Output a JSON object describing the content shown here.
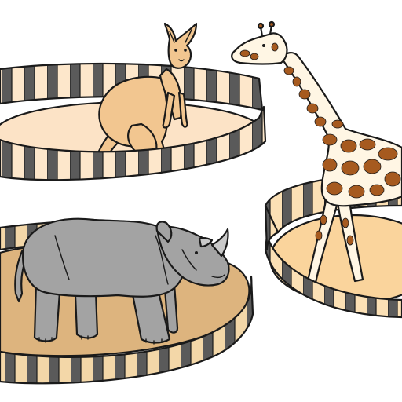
{
  "scene": {
    "background": "#ffffff",
    "outline_color": "#1a1a1a",
    "bar_color": "#5a5a5a",
    "pens": [
      {
        "name": "kangaroo-pen",
        "floor_color": "#fce3c6",
        "wall_color": "#fde7cb"
      },
      {
        "name": "rhino-pen",
        "floor_color": "#ddb47e",
        "wall_color": "#f3d7a8"
      },
      {
        "name": "giraffe-pen",
        "floor_color": "#fad49c",
        "wall_color": "#fbe0b5"
      }
    ],
    "animals": [
      {
        "name": "kangaroo",
        "body_color": "#f2c690"
      },
      {
        "name": "rhinoceros",
        "body_color": "#a3a3a3"
      },
      {
        "name": "giraffe",
        "body_color": "#fff6e4",
        "spot_color": "#a65a1f"
      }
    ]
  }
}
